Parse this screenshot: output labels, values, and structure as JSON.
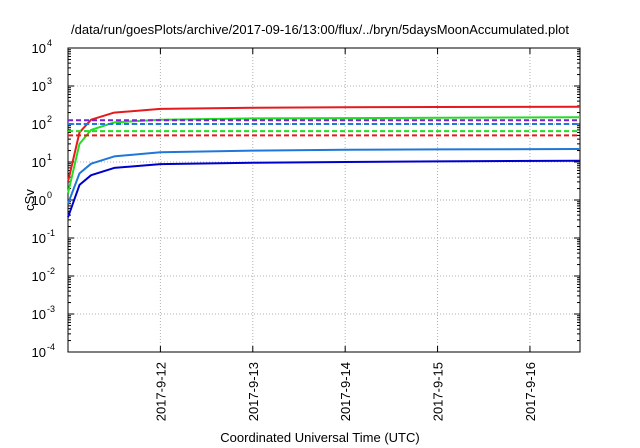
{
  "chart_data": {
    "type": "line",
    "title": "/data/run/goesPlots/archive/2017-09-16/13:00/flux/../bryn/5daysMoonAccumulated.plot",
    "xlabel": "Coordinated Universal Time (UTC)",
    "ylabel": "cSv",
    "y_scale": "log",
    "ylim": [
      0.0001,
      10000
    ],
    "xlim": [
      "2017-09-11T00:00",
      "2017-09-16T13:00"
    ],
    "x_ticks": [
      "2017-9-12",
      "2017-9-13",
      "2017-9-14",
      "2017-9-15",
      "2017-9-16"
    ],
    "y_ticks": [
      {
        "base": "10",
        "exp": "-4"
      },
      {
        "base": "10",
        "exp": "-3"
      },
      {
        "base": "10",
        "exp": "-2"
      },
      {
        "base": "10",
        "exp": "-1"
      },
      {
        "base": "10",
        "exp": "0"
      },
      {
        "base": "10",
        "exp": "1"
      },
      {
        "base": "10",
        "exp": "2"
      },
      {
        "base": "10",
        "exp": "3"
      },
      {
        "base": "10",
        "exp": "4"
      }
    ],
    "grid": true,
    "series": [
      {
        "color": "#e41a1c",
        "style": "solid",
        "x": [
          "2017-09-11T00:00",
          "2017-09-11T03:00",
          "2017-09-11T06:00",
          "2017-09-11T12:00",
          "2017-09-12T00:00",
          "2017-09-13T00:00",
          "2017-09-14T00:00",
          "2017-09-15T00:00",
          "2017-09-16T13:00"
        ],
        "y": [
          3,
          60,
          130,
          200,
          250,
          268,
          275,
          280,
          285
        ]
      },
      {
        "color": "#22dd22",
        "style": "solid",
        "x": [
          "2017-09-11T00:00",
          "2017-09-11T03:00",
          "2017-09-11T06:00",
          "2017-09-11T12:00",
          "2017-09-12T00:00",
          "2017-09-13T00:00",
          "2017-09-14T00:00",
          "2017-09-15T00:00",
          "2017-09-16T13:00"
        ],
        "y": [
          1.5,
          30,
          70,
          110,
          130,
          140,
          143,
          146,
          150
        ]
      },
      {
        "color": "#1f78d8",
        "style": "solid",
        "x": [
          "2017-09-11T00:00",
          "2017-09-11T03:00",
          "2017-09-11T06:00",
          "2017-09-11T12:00",
          "2017-09-12T00:00",
          "2017-09-13T00:00",
          "2017-09-14T00:00",
          "2017-09-15T00:00",
          "2017-09-16T13:00"
        ],
        "y": [
          0.8,
          5,
          9,
          14,
          18,
          20,
          21,
          21.5,
          22
        ]
      },
      {
        "color": "#0000cc",
        "style": "solid",
        "x": [
          "2017-09-11T00:00",
          "2017-09-11T03:00",
          "2017-09-11T06:00",
          "2017-09-11T12:00",
          "2017-09-12T00:00",
          "2017-09-13T00:00",
          "2017-09-14T00:00",
          "2017-09-15T00:00",
          "2017-09-16T13:00"
        ],
        "y": [
          0.35,
          2.5,
          4.5,
          7,
          8.8,
          9.6,
          10,
          10.4,
          10.8
        ]
      },
      {
        "color": "#e41a1c",
        "style": "dashed",
        "x": [
          "2017-09-11T00:00",
          "2017-09-16T13:00"
        ],
        "y": [
          50,
          50
        ]
      },
      {
        "color": "#22dd22",
        "style": "dashed",
        "x": [
          "2017-09-11T00:00",
          "2017-09-16T13:00"
        ],
        "y": [
          65,
          65
        ]
      },
      {
        "color": "#1f78d8",
        "style": "dashed",
        "x": [
          "2017-09-11T00:00",
          "2017-09-16T13:00"
        ],
        "y": [
          100,
          100
        ]
      },
      {
        "color": "#7a1fd8",
        "style": "dashed",
        "x": [
          "2017-09-11T00:00",
          "2017-09-16T13:00"
        ],
        "y": [
          125,
          125
        ]
      }
    ]
  }
}
